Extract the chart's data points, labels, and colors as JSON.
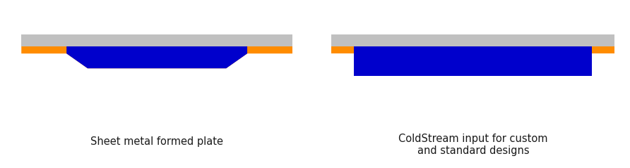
{
  "bg_color": "#ffffff",
  "gray_color": "#c0c0c0",
  "orange_color": "#FF8C00",
  "blue_color": "#0000CC",
  "text_color": "#1a1a1a",
  "label_left": "Sheet metal formed plate",
  "label_right": "ColdStream input for custom\nand standard designs",
  "fig_width": 8.92,
  "fig_height": 2.39,
  "font_size": 10.5
}
